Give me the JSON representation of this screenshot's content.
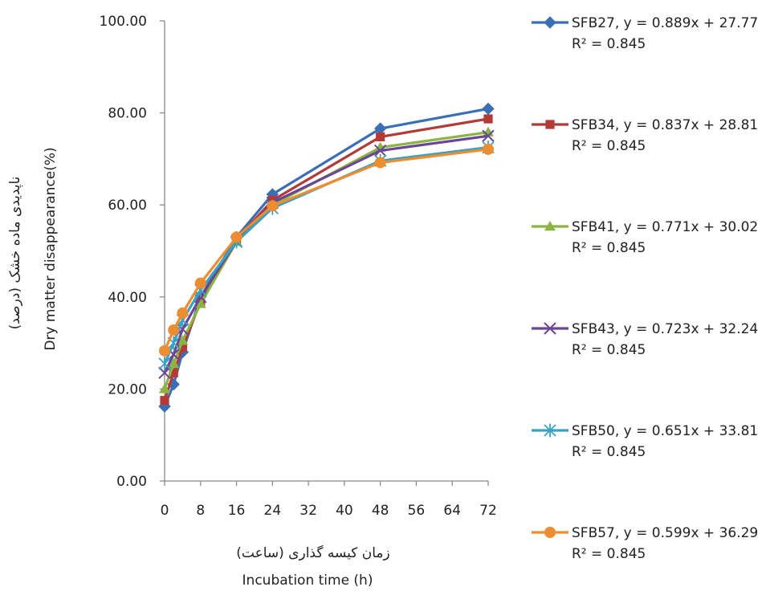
{
  "chart_data": {
    "type": "line",
    "x": [
      0,
      2,
      4,
      8,
      16,
      24,
      48,
      72
    ],
    "xticks": [
      "0",
      "8",
      "16",
      "24",
      "32",
      "40",
      "48",
      "56",
      "64",
      "72"
    ],
    "yticks": [
      "0.00",
      "20.00",
      "40.00",
      "60.00",
      "80.00",
      "100.00"
    ],
    "xlim": [
      0,
      72
    ],
    "ylim": [
      0,
      100
    ],
    "xlabel": "Incubation time (h)",
    "xlabel_fa": "زمان کیسه گذاری (ساعت)",
    "ylabel": "Dry matter disappearance(%)",
    "ylabel_fa": "ناپدیدی ماده خشک (درصد)",
    "legend_position": "right",
    "series": [
      {
        "name": "SFB27",
        "equation": "SFB27, y = 0.889x + 27.77",
        "r2": "R² = 0.845",
        "color": "#3a6fb5",
        "marker": "diamond",
        "values": [
          16.2,
          21.0,
          28.0,
          40.0,
          53.0,
          62.3,
          76.6,
          80.9
        ]
      },
      {
        "name": "SFB34",
        "equation": "SFB34, y = 0.837x + 28.81",
        "r2": "R² = 0.845",
        "color": "#b33a36",
        "marker": "square",
        "values": [
          17.5,
          23.5,
          29.0,
          39.0,
          52.5,
          61.0,
          74.8,
          78.7
        ]
      },
      {
        "name": "SFB41",
        "equation": "SFB41, y = 0.771x + 30.02",
        "r2": "R² = 0.845",
        "color": "#8cb442",
        "marker": "triangle",
        "values": [
          20.0,
          25.5,
          30.5,
          38.5,
          52.0,
          60.0,
          72.5,
          75.8
        ]
      },
      {
        "name": "SFB43",
        "equation": "SFB43, y = 0.723x + 32.24",
        "r2": "R² = 0.845",
        "color": "#6a4796",
        "marker": "x",
        "values": [
          23.5,
          27.5,
          33.0,
          40.0,
          52.0,
          60.5,
          71.8,
          75.0
        ]
      },
      {
        "name": "SFB50",
        "equation": "SFB50, y = 0.651x + 33.81",
        "r2": "R² = 0.845",
        "color": "#3ba1c1",
        "marker": "star",
        "values": [
          25.5,
          30.0,
          35.0,
          41.5,
          52.0,
          59.3,
          69.6,
          72.5
        ]
      },
      {
        "name": "SFB57",
        "equation": "SFB57, y = 0.599x + 36.29",
        "r2": "R² = 0.845",
        "color": "#ee8c30",
        "marker": "circle",
        "values": [
          28.3,
          32.8,
          36.5,
          43.0,
          53.0,
          59.8,
          69.2,
          72.1
        ]
      }
    ]
  }
}
